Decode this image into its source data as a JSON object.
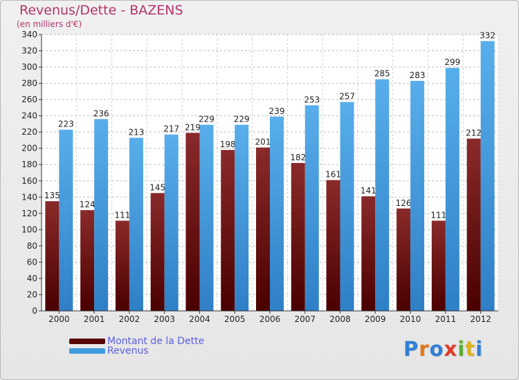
{
  "header": {
    "title": "Revenus/Dette - BAZENS",
    "subtitle": "(en milliers d'€)"
  },
  "colors": {
    "dette": "#7a1212",
    "revenus": "#3f9be0",
    "text_accent": "#b2336b",
    "legend_text": "#5b5ee0"
  },
  "legend": {
    "items": [
      {
        "label": "Montant de la Dette",
        "color": "#5a0505"
      },
      {
        "label": "Revenus",
        "color": "#3f9be0"
      }
    ]
  },
  "logo": {
    "letters": [
      "P",
      "r",
      "o",
      "x",
      "i",
      "t",
      "i"
    ],
    "colors": [
      "#2f7fd6",
      "#e0791b",
      "#2f7fd6",
      "#e03b2b",
      "#57b02f",
      "#e0b21b",
      "#2f7fd6"
    ]
  },
  "chart_data": {
    "type": "bar",
    "title": "Revenus/Dette - BAZENS",
    "ylabel": "(en milliers d'€)",
    "categories": [
      "2000",
      "2001",
      "2002",
      "2003",
      "2004",
      "2005",
      "2006",
      "2007",
      "2008",
      "2009",
      "2010",
      "2011",
      "2012"
    ],
    "series": [
      {
        "name": "Montant de la Dette",
        "values": [
          135,
          124,
          111,
          145,
          219,
          198,
          201,
          182,
          161,
          141,
          126,
          111,
          212
        ]
      },
      {
        "name": "Revenus",
        "values": [
          223,
          236,
          213,
          217,
          229,
          229,
          239,
          253,
          257,
          285,
          283,
          299,
          332
        ]
      }
    ],
    "ylim": [
      0,
      340
    ],
    "yticks": [
      0,
      20,
      40,
      60,
      80,
      100,
      120,
      140,
      160,
      180,
      200,
      220,
      240,
      260,
      280,
      300,
      320,
      340
    ],
    "grid": true,
    "legend_position": "bottom-left"
  }
}
